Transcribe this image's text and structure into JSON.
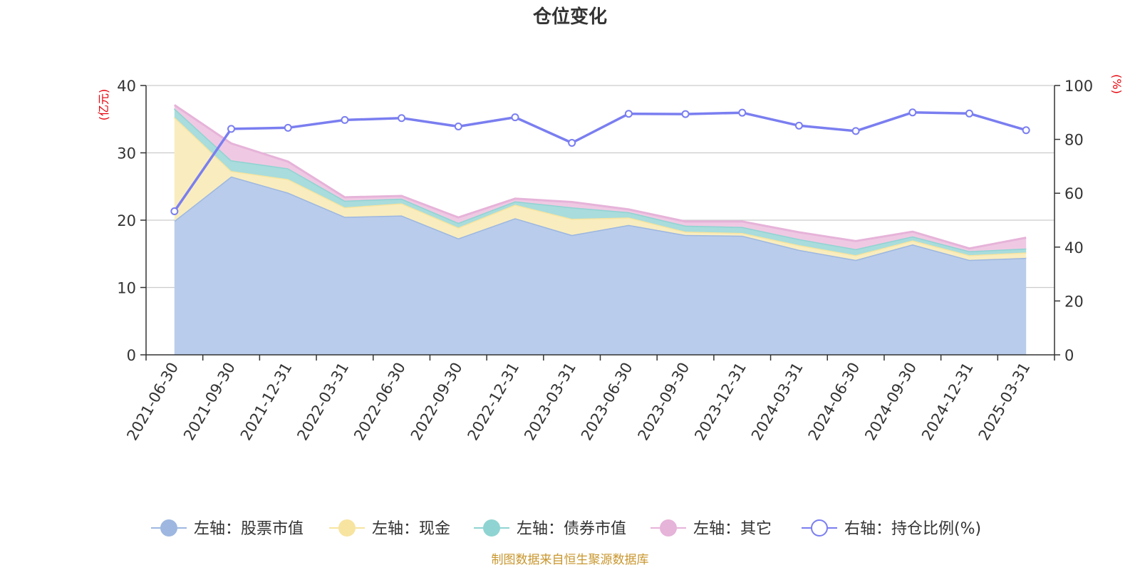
{
  "colors": {
    "stock": "#9db7e0",
    "stock_fill": "#b9cceb",
    "cash": "#f7e4a0",
    "cash_fill": "#f9edbf",
    "bond": "#8fd4d2",
    "bond_fill": "#a9dcdc",
    "other": "#e6b3d9",
    "other_fill": "#efc9e3",
    "ratio": "#7a7ef0",
    "unit": "#e8000b",
    "source": "#c8962e"
  },
  "chart_data": {
    "type": "area",
    "title": "仓位变化",
    "x": [
      "2021-06-30",
      "2021-09-30",
      "2021-12-31",
      "2022-03-31",
      "2022-06-30",
      "2022-09-30",
      "2022-12-31",
      "2023-03-31",
      "2023-06-30",
      "2023-09-30",
      "2023-12-31",
      "2024-03-31",
      "2024-06-30",
      "2024-09-30",
      "2024-12-31",
      "2025-03-31"
    ],
    "left_axis": {
      "unit": "(亿元)",
      "ylim": [
        0,
        40
      ],
      "ticks": [
        "0",
        "10",
        "20",
        "30",
        "40"
      ]
    },
    "right_axis": {
      "unit": "(%)",
      "ylim": [
        0,
        100
      ],
      "ticks": [
        "0",
        "20",
        "40",
        "60",
        "80",
        "100"
      ]
    },
    "grid": true,
    "legend_position": "bottom",
    "series": [
      {
        "name": "左轴：股票市值",
        "axis": "left",
        "stacked": true,
        "values": [
          19.9,
          26.5,
          24.1,
          20.5,
          20.7,
          17.3,
          20.3,
          17.8,
          19.3,
          17.8,
          17.7,
          15.6,
          14.1,
          16.4,
          14.1,
          14.4
        ]
      },
      {
        "name": "左轴：现金",
        "axis": "left",
        "stacked": true,
        "values": [
          15.4,
          0.8,
          2.0,
          1.4,
          1.8,
          1.6,
          2.0,
          2.4,
          1.1,
          0.5,
          0.4,
          0.7,
          0.7,
          0.6,
          0.7,
          0.8
        ]
      },
      {
        "name": "左轴：债券市值",
        "axis": "left",
        "stacked": true,
        "values": [
          1.3,
          1.6,
          1.6,
          1.0,
          0.7,
          0.7,
          0.5,
          1.7,
          0.8,
          0.9,
          0.9,
          0.9,
          0.9,
          0.6,
          0.6,
          0.6
        ]
      },
      {
        "name": "左轴：其它",
        "axis": "left",
        "stacked": true,
        "values": [
          0.5,
          2.5,
          1.0,
          0.5,
          0.4,
          0.8,
          0.4,
          0.8,
          0.4,
          0.6,
          0.8,
          1.0,
          1.2,
          0.7,
          0.4,
          1.6
        ]
      },
      {
        "name": "右轴：持仓比例(%)",
        "axis": "right",
        "values": [
          53.3,
          83.9,
          84.3,
          87.2,
          87.9,
          84.8,
          88.2,
          78.7,
          89.5,
          89.4,
          89.9,
          85.1,
          83.1,
          90.0,
          89.6,
          83.4
        ]
      }
    ]
  },
  "legend": [
    {
      "label": "左轴：股票市值",
      "icon": "filled-circle"
    },
    {
      "label": "左轴：现金",
      "icon": "filled-circle"
    },
    {
      "label": "左轴：债券市值",
      "icon": "filled-circle"
    },
    {
      "label": "左轴：其它",
      "icon": "filled-circle"
    },
    {
      "label": "右轴：持仓比例(%)",
      "icon": "hollow-circle"
    }
  ],
  "source": "制图数据来自恒生聚源数据库"
}
